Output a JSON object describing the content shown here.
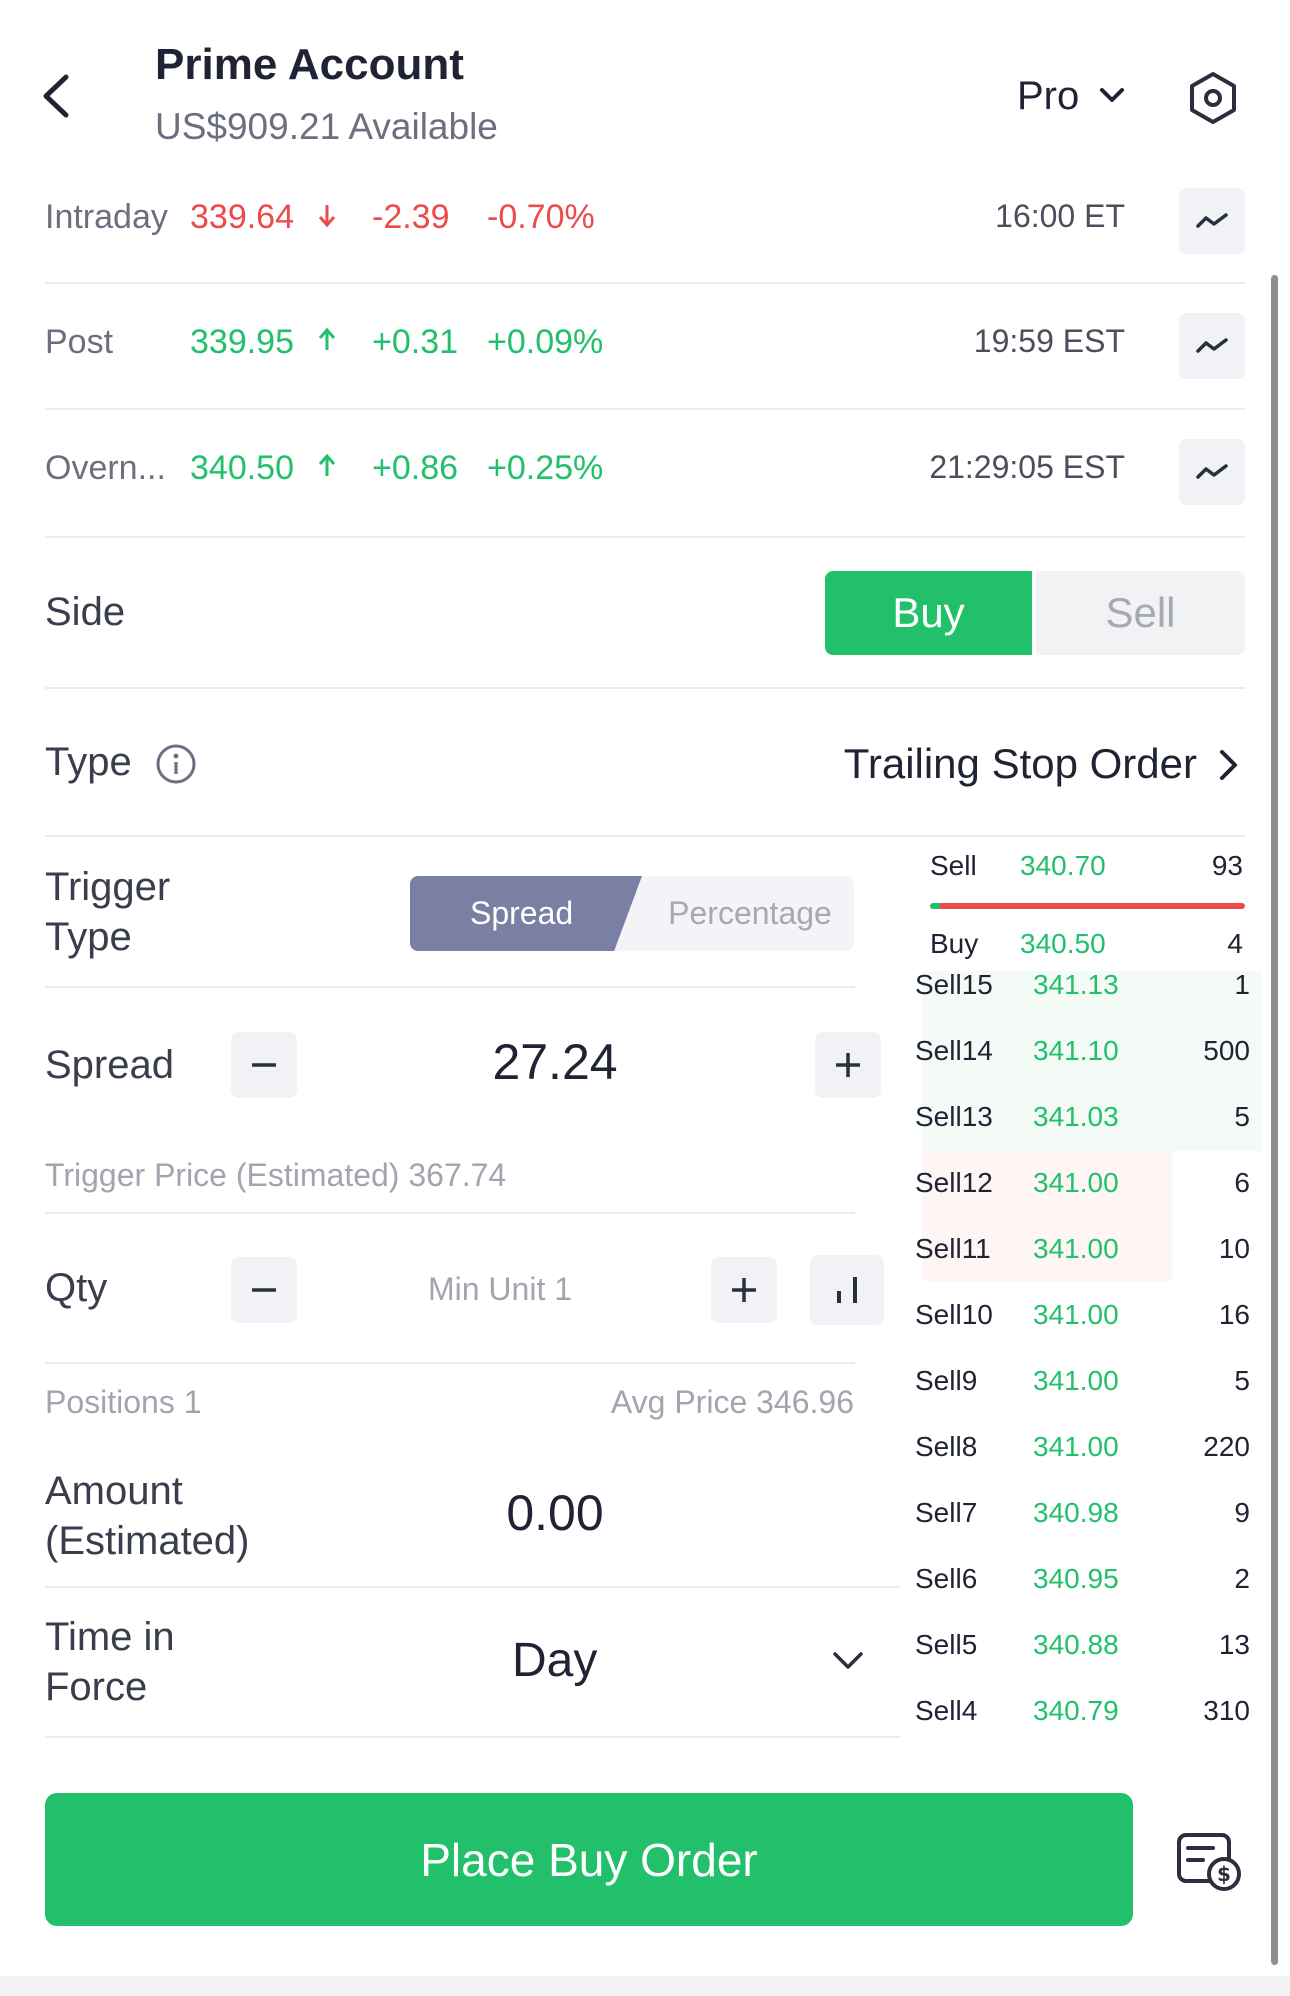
{
  "header": {
    "back_icon": "chevron-left-icon",
    "account_title": "Prime Account",
    "available": "US$909.21 Available",
    "mode_label": "Pro",
    "settings_icon": "settings-circle-icon"
  },
  "quotes": [
    {
      "label": "Intraday",
      "price": "339.64",
      "direction": "down",
      "change": "-2.39",
      "percent": "-0.70%",
      "time": "16:00 ET"
    },
    {
      "label": "Post",
      "price": "339.95",
      "direction": "up",
      "change": "+0.31",
      "percent": "+0.09%",
      "time": "19:59 EST"
    },
    {
      "label": "Overn...",
      "price": "340.50",
      "direction": "up",
      "change": "+0.86",
      "percent": "+0.25%",
      "time": "21:29:05 EST"
    }
  ],
  "side": {
    "label": "Side",
    "buy": "Buy",
    "sell": "Sell",
    "selected": "Buy"
  },
  "type": {
    "label": "Type",
    "value": "Trailing Stop Order"
  },
  "trigger": {
    "label_line1": "Trigger",
    "label_line2": "Type",
    "option_spread": "Spread",
    "option_percentage": "Percentage",
    "selected": "Spread"
  },
  "spread": {
    "label": "Spread",
    "value": "27.24"
  },
  "trigger_price": "Trigger Price (Estimated) 367.74",
  "qty": {
    "label": "Qty",
    "placeholder": "Min Unit 1"
  },
  "positions": {
    "positions_text": "Positions 1",
    "avg_price_text": "Avg Price 346.96"
  },
  "amount": {
    "label_line1": "Amount",
    "label_line2": "(Estimated)",
    "value": "0.00"
  },
  "tif": {
    "label_line1": "Time in",
    "label_line2": "Force",
    "value": "Day"
  },
  "book_top": {
    "sell_label": "Sell",
    "sell_price": "340.70",
    "sell_qty": "93",
    "buy_label": "Buy",
    "buy_price": "340.50",
    "buy_qty": "4"
  },
  "book_rows": [
    {
      "label": "Sell15",
      "price": "341.13",
      "qty": "1"
    },
    {
      "label": "Sell14",
      "price": "341.10",
      "qty": "500"
    },
    {
      "label": "Sell13",
      "price": "341.03",
      "qty": "5"
    },
    {
      "label": "Sell12",
      "price": "341.00",
      "qty": "6"
    },
    {
      "label": "Sell11",
      "price": "341.00",
      "qty": "10"
    },
    {
      "label": "Sell10",
      "price": "341.00",
      "qty": "16"
    },
    {
      "label": "Sell9",
      "price": "341.00",
      "qty": "5"
    },
    {
      "label": "Sell8",
      "price": "341.00",
      "qty": "220"
    },
    {
      "label": "Sell7",
      "price": "340.98",
      "qty": "9"
    },
    {
      "label": "Sell6",
      "price": "340.95",
      "qty": "2"
    },
    {
      "label": "Sell5",
      "price": "340.88",
      "qty": "13"
    },
    {
      "label": "Sell4",
      "price": "340.79",
      "qty": "310"
    }
  ],
  "place_order": "Place Buy Order",
  "colors": {
    "green": "#22c06b",
    "red": "#ec4b4b",
    "spread_active": "#7a80a3"
  }
}
